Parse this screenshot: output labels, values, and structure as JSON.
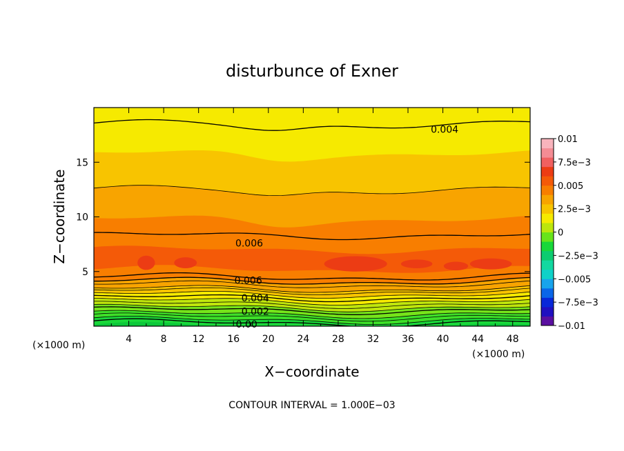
{
  "chart_data": {
    "type": "contour",
    "title": "disturbunce of Exner",
    "xlabel": "X−coordinate",
    "ylabel": "Z−coordinate",
    "x_unit": "(×1000 m)",
    "x_unit_right": "(×1000 m)",
    "xlim": [
      0,
      50
    ],
    "ylim": [
      0,
      20
    ],
    "x_ticks": [
      4,
      8,
      12,
      16,
      20,
      24,
      28,
      32,
      36,
      40,
      44,
      48
    ],
    "y_ticks": [
      5,
      10,
      15
    ],
    "x_tick_labels": [
      "4",
      "8",
      "12",
      "16",
      "20",
      "24",
      "28",
      "32",
      "36",
      "40",
      "44",
      "48"
    ],
    "y_tick_labels": [
      "5",
      "10",
      "15"
    ],
    "footer": "CONTOUR INTERVAL = 1.000E−03",
    "contour_interval": 0.001,
    "colorbar": {
      "labels": [
        "0.01",
        "7.5e−3",
        "0.005",
        "2.5e−3",
        "0",
        "−2.5e−3",
        "−0.005",
        "−7.5e−3",
        "−0.01"
      ],
      "colors": [
        "#5a10a0",
        "#2010c0",
        "#0828d8",
        "#0a66e8",
        "#18a4ec",
        "#10d2c8",
        "#12d8a0",
        "#0ccc70",
        "#18d83a",
        "#68e41a",
        "#bce60c",
        "#f6ea00",
        "#f8c400",
        "#f8a400",
        "#f87e00",
        "#f45a08",
        "#ec3c14",
        "#f06060",
        "#f48c94",
        "#f8b4bc"
      ]
    },
    "bands": [
      {
        "z": 0.0,
        "color": "#0cc83a"
      },
      {
        "z": 0.55,
        "color": "#1ad83a"
      },
      {
        "z": 1.1,
        "color": "#3ee028"
      },
      {
        "z": 1.7,
        "color": "#76e41a"
      },
      {
        "z": 2.3,
        "color": "#c0e60c"
      },
      {
        "z": 2.9,
        "color": "#f6ea00"
      },
      {
        "z": 3.4,
        "color": "#f8c400"
      },
      {
        "z": 4.1,
        "color": "#f8a400"
      },
      {
        "z": 5.2,
        "color": "#f87e00"
      },
      {
        "z": 7.0,
        "color": "#f45a08"
      }
    ],
    "upper_bands": [
      {
        "z": 9.8,
        "color": "#f87e00"
      },
      {
        "z": 12.5,
        "color": "#f8a400"
      },
      {
        "z": 15.8,
        "color": "#f8c400"
      },
      {
        "z": 18.2,
        "color": "#f6ea00"
      }
    ],
    "contour_labels": [
      {
        "text": "0.004",
        "x": 40.2,
        "z": 18.0
      },
      {
        "text": "0.006",
        "x": 17.8,
        "z": 7.6
      },
      {
        "text": "0.006",
        "x": 17.7,
        "z": 4.2
      },
      {
        "text": "0.004",
        "x": 18.5,
        "z": 2.6
      },
      {
        "text": "0.002",
        "x": 18.5,
        "z": 1.35
      },
      {
        "text": "0.00",
        "x": 17.5,
        "z": 0.2
      }
    ]
  }
}
